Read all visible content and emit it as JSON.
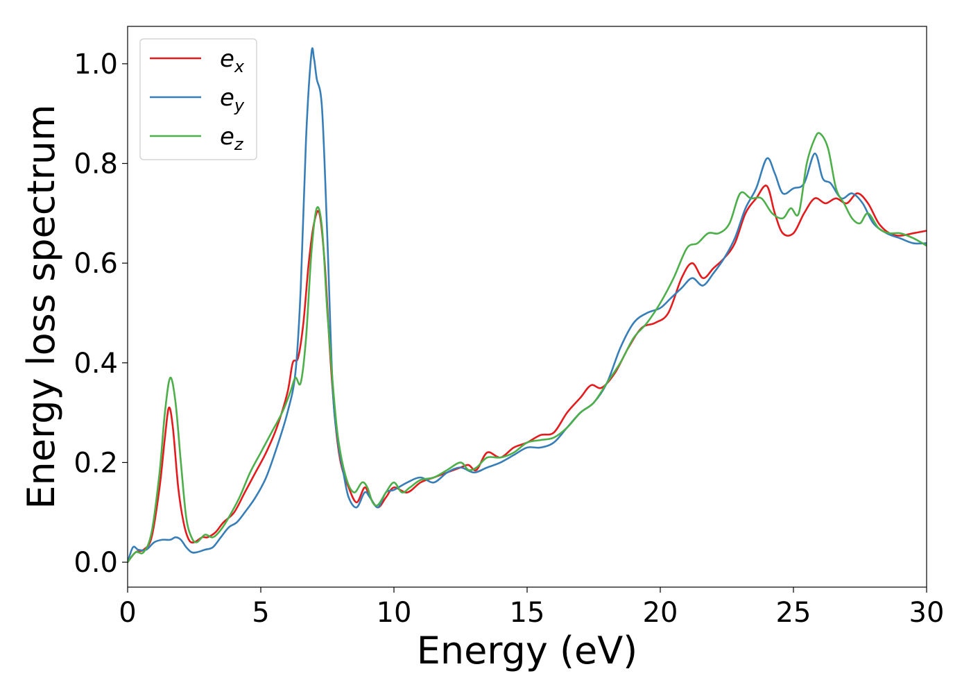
{
  "chart_data": {
    "type": "line",
    "xlabel": "Energy (eV)",
    "ylabel": "Energy loss spectrum",
    "xlim": [
      0,
      30
    ],
    "ylim": [
      -0.05,
      1.075
    ],
    "xticks": [
      0,
      5,
      10,
      15,
      20,
      25,
      30
    ],
    "xtick_labels": [
      "0",
      "5",
      "10",
      "15",
      "20",
      "25",
      "30"
    ],
    "yticks": [
      0.0,
      0.2,
      0.4,
      0.6,
      0.8,
      1.0
    ],
    "ytick_labels": [
      "0.0",
      "0.2",
      "0.4",
      "0.6",
      "0.8",
      "1.0"
    ],
    "grid": false,
    "legend_position": "top-left",
    "series": [
      {
        "name": "e_x",
        "name_base": "e",
        "name_sub": "x",
        "color": "#e41a1c",
        "x": [
          0,
          0.3,
          0.6,
          0.9,
          1.2,
          1.4,
          1.55,
          1.7,
          1.9,
          2.1,
          2.3,
          2.5,
          2.8,
          3.0,
          3.3,
          3.6,
          4.0,
          4.4,
          4.8,
          5.2,
          5.6,
          6.0,
          6.2,
          6.4,
          6.6,
          6.8,
          7.0,
          7.2,
          7.4,
          7.6,
          7.8,
          8.0,
          8.3,
          8.6,
          8.9,
          9.1,
          9.4,
          9.7,
          10.0,
          10.5,
          11.0,
          11.5,
          12.0,
          12.5,
          12.8,
          13.1,
          13.5,
          14.0,
          14.5,
          15.0,
          15.5,
          16.0,
          16.5,
          17.0,
          17.4,
          17.8,
          18.3,
          18.8,
          19.3,
          19.8,
          20.3,
          20.8,
          21.2,
          21.6,
          22.0,
          22.4,
          22.8,
          23.2,
          23.6,
          24.0,
          24.3,
          24.6,
          25.0,
          25.4,
          25.8,
          26.2,
          26.6,
          27.0,
          27.4,
          27.8,
          28.2,
          28.6,
          29.0,
          29.5,
          30.0
        ],
        "y": [
          0.0,
          0.02,
          0.025,
          0.05,
          0.15,
          0.25,
          0.31,
          0.27,
          0.15,
          0.08,
          0.045,
          0.04,
          0.05,
          0.05,
          0.06,
          0.08,
          0.1,
          0.14,
          0.18,
          0.22,
          0.27,
          0.34,
          0.4,
          0.41,
          0.48,
          0.6,
          0.68,
          0.7,
          0.6,
          0.42,
          0.28,
          0.2,
          0.15,
          0.12,
          0.15,
          0.13,
          0.11,
          0.13,
          0.15,
          0.14,
          0.16,
          0.17,
          0.18,
          0.19,
          0.195,
          0.185,
          0.22,
          0.21,
          0.23,
          0.24,
          0.255,
          0.26,
          0.3,
          0.33,
          0.355,
          0.35,
          0.38,
          0.43,
          0.47,
          0.48,
          0.5,
          0.57,
          0.6,
          0.57,
          0.59,
          0.61,
          0.64,
          0.7,
          0.73,
          0.755,
          0.7,
          0.66,
          0.66,
          0.7,
          0.73,
          0.72,
          0.73,
          0.72,
          0.74,
          0.72,
          0.68,
          0.66,
          0.655,
          0.66,
          0.665
        ]
      },
      {
        "name": "e_y",
        "name_base": "e",
        "name_sub": "y",
        "color": "#377eb8",
        "x": [
          0,
          0.2,
          0.4,
          0.7,
          1.0,
          1.3,
          1.6,
          1.8,
          2.0,
          2.2,
          2.4,
          2.6,
          2.9,
          3.2,
          3.5,
          3.8,
          4.1,
          4.4,
          4.8,
          5.2,
          5.6,
          6.0,
          6.3,
          6.5,
          6.7,
          6.9,
          7.0,
          7.1,
          7.3,
          7.5,
          7.7,
          7.9,
          8.1,
          8.3,
          8.6,
          8.9,
          9.1,
          9.4,
          9.7,
          10.0,
          10.5,
          11.0,
          11.5,
          12.0,
          12.5,
          13.0,
          13.5,
          14.0,
          14.5,
          15.0,
          15.5,
          16.0,
          16.5,
          17.0,
          17.5,
          18.0,
          18.5,
          19.0,
          19.5,
          20.0,
          20.4,
          20.8,
          21.2,
          21.6,
          22.0,
          22.4,
          22.8,
          23.2,
          23.6,
          24.0,
          24.3,
          24.6,
          25.0,
          25.4,
          25.8,
          26.1,
          26.4,
          26.8,
          27.2,
          27.6,
          28.0,
          28.5,
          29.0,
          29.5,
          30.0
        ],
        "y": [
          0.0,
          0.03,
          0.025,
          0.025,
          0.04,
          0.045,
          0.045,
          0.05,
          0.045,
          0.03,
          0.02,
          0.02,
          0.025,
          0.03,
          0.05,
          0.07,
          0.08,
          0.1,
          0.13,
          0.17,
          0.23,
          0.3,
          0.38,
          0.55,
          0.85,
          1.02,
          1.01,
          0.97,
          0.91,
          0.65,
          0.35,
          0.24,
          0.18,
          0.13,
          0.11,
          0.14,
          0.13,
          0.11,
          0.14,
          0.145,
          0.16,
          0.17,
          0.16,
          0.18,
          0.19,
          0.18,
          0.19,
          0.2,
          0.215,
          0.23,
          0.23,
          0.24,
          0.27,
          0.3,
          0.32,
          0.36,
          0.43,
          0.48,
          0.5,
          0.51,
          0.53,
          0.55,
          0.57,
          0.555,
          0.58,
          0.61,
          0.65,
          0.71,
          0.75,
          0.81,
          0.78,
          0.74,
          0.75,
          0.76,
          0.82,
          0.77,
          0.76,
          0.73,
          0.74,
          0.72,
          0.68,
          0.66,
          0.65,
          0.64,
          0.64
        ]
      },
      {
        "name": "e_z",
        "name_base": "e",
        "name_sub": "z",
        "color": "#4daf4a",
        "x": [
          0,
          0.3,
          0.6,
          0.9,
          1.2,
          1.4,
          1.6,
          1.8,
          2.0,
          2.2,
          2.4,
          2.6,
          2.9,
          3.2,
          3.5,
          3.8,
          4.2,
          4.6,
          5.0,
          5.4,
          5.8,
          6.1,
          6.3,
          6.5,
          6.7,
          6.9,
          7.1,
          7.3,
          7.5,
          7.7,
          7.9,
          8.2,
          8.5,
          8.8,
          9.0,
          9.2,
          9.4,
          9.7,
          10.0,
          10.3,
          10.6,
          11.0,
          11.5,
          12.0,
          12.5,
          12.8,
          13.1,
          13.5,
          14.0,
          14.5,
          15.0,
          15.5,
          16.0,
          16.5,
          17.0,
          17.5,
          18.0,
          18.5,
          19.0,
          19.5,
          20.0,
          20.5,
          21.0,
          21.4,
          21.8,
          22.2,
          22.6,
          23.0,
          23.4,
          23.8,
          24.2,
          24.6,
          24.9,
          25.2,
          25.5,
          25.8,
          26.0,
          26.3,
          26.6,
          26.9,
          27.2,
          27.5,
          27.8,
          28.2,
          28.6,
          29.0,
          29.5,
          30.0
        ],
        "y": [
          0.0,
          0.02,
          0.02,
          0.06,
          0.18,
          0.3,
          0.37,
          0.32,
          0.2,
          0.09,
          0.05,
          0.04,
          0.055,
          0.05,
          0.065,
          0.09,
          0.13,
          0.18,
          0.22,
          0.26,
          0.3,
          0.34,
          0.37,
          0.36,
          0.45,
          0.62,
          0.71,
          0.67,
          0.5,
          0.36,
          0.25,
          0.17,
          0.14,
          0.16,
          0.15,
          0.12,
          0.115,
          0.14,
          0.16,
          0.14,
          0.15,
          0.165,
          0.17,
          0.185,
          0.2,
          0.185,
          0.19,
          0.21,
          0.21,
          0.22,
          0.24,
          0.245,
          0.25,
          0.27,
          0.3,
          0.32,
          0.36,
          0.4,
          0.45,
          0.48,
          0.52,
          0.57,
          0.63,
          0.64,
          0.66,
          0.66,
          0.68,
          0.74,
          0.73,
          0.73,
          0.7,
          0.69,
          0.71,
          0.7,
          0.8,
          0.85,
          0.86,
          0.83,
          0.75,
          0.72,
          0.69,
          0.68,
          0.7,
          0.67,
          0.66,
          0.66,
          0.65,
          0.635
        ]
      }
    ]
  }
}
